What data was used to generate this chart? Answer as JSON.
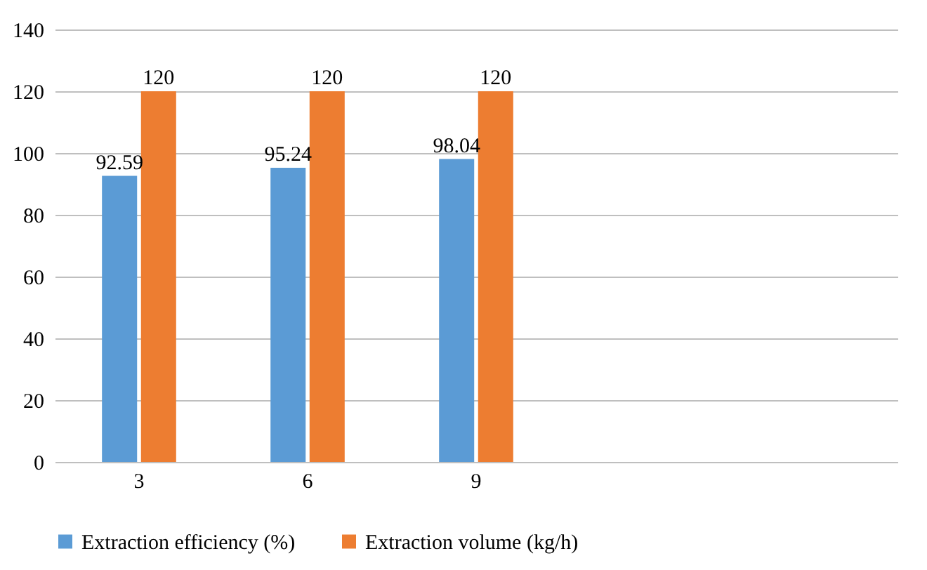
{
  "chart_data": {
    "type": "bar",
    "categories": [
      "3",
      "6",
      "9",
      null,
      null
    ],
    "series": [
      {
        "name": "Extraction efficiency (%)",
        "color": "#5b9bd5",
        "values": [
          92.59,
          95.24,
          98.04,
          null,
          null
        ]
      },
      {
        "name": "Extraction volume (kg/h)",
        "color": "#ed7d31",
        "values": [
          120,
          120,
          120,
          null,
          null
        ]
      }
    ],
    "ylim": [
      0,
      140
    ],
    "yticks": [
      0,
      20,
      40,
      60,
      80,
      100,
      120,
      140
    ],
    "grid": "y",
    "legend": "bottom",
    "data_labels": true
  }
}
